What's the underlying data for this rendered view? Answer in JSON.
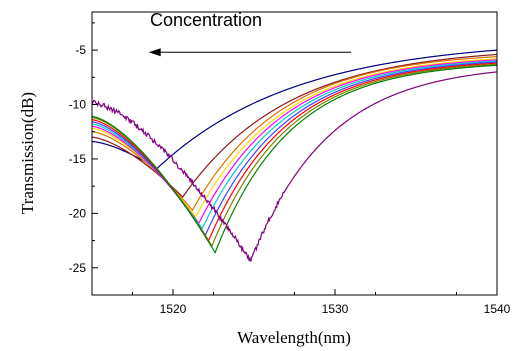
{
  "chart_data": {
    "type": "line",
    "title": "",
    "xlabel": "Wavelength(nm)",
    "ylabel": "Transmission(dB)",
    "xlim": [
      1515,
      1540
    ],
    "ylim": [
      -27.5,
      -1.5
    ],
    "xticks": [
      1520,
      1530,
      1540
    ],
    "yticks": [
      -5,
      -10,
      -15,
      -20,
      -25
    ],
    "grid": false,
    "legend": "none",
    "annotation": {
      "text": "Concentration",
      "arrow_from_x": 1531,
      "arrow_to_x": 1518.5,
      "arrow_y": -5.2
    },
    "series": [
      {
        "color": "#000080",
        "min_x": 1519.0,
        "min_y": -15.9,
        "left_x": 1515,
        "left_y": -13.4,
        "end_y": -5.0,
        "width": 8.5,
        "noisy": false
      },
      {
        "color": "#8b1a1a",
        "min_x": 1520.6,
        "min_y": -18.5,
        "left_x": 1515,
        "left_y": -13.0,
        "end_y": -5.4,
        "width": 6.5,
        "noisy": false
      },
      {
        "color": "#e07000",
        "min_x": 1521.2,
        "min_y": -19.7,
        "left_x": 1515,
        "left_y": -12.5,
        "end_y": -5.6,
        "width": 5.5,
        "noisy": false
      },
      {
        "color": "#ffdd00",
        "min_x": 1521.4,
        "min_y": -20.3,
        "left_x": 1515,
        "left_y": -12.2,
        "end_y": -5.8,
        "width": 5.3,
        "noisy": false
      },
      {
        "color": "#ff00ff",
        "min_x": 1521.6,
        "min_y": -20.9,
        "left_x": 1515,
        "left_y": -12.0,
        "end_y": -5.9,
        "width": 5.1,
        "noisy": false
      },
      {
        "color": "#00cccc",
        "min_x": 1521.8,
        "min_y": -21.4,
        "left_x": 1515,
        "left_y": -11.8,
        "end_y": -6.0,
        "width": 5.0,
        "noisy": false
      },
      {
        "color": "#4040ff",
        "min_x": 1522.0,
        "min_y": -22.0,
        "left_x": 1515,
        "left_y": -11.6,
        "end_y": -6.1,
        "width": 4.9,
        "noisy": false
      },
      {
        "color": "#ff0000",
        "min_x": 1522.2,
        "min_y": -22.5,
        "left_x": 1515,
        "left_y": -11.4,
        "end_y": -6.2,
        "width": 4.8,
        "noisy": false
      },
      {
        "color": "#808000",
        "min_x": 1522.4,
        "min_y": -23.0,
        "left_x": 1515,
        "left_y": -11.2,
        "end_y": -6.3,
        "width": 4.7,
        "noisy": false
      },
      {
        "color": "#008000",
        "min_x": 1522.6,
        "min_y": -23.6,
        "left_x": 1515,
        "left_y": -11.1,
        "end_y": -6.4,
        "width": 4.6,
        "noisy": false
      },
      {
        "color": "#800080",
        "min_x": 1524.8,
        "min_y": -24.4,
        "left_x": 1515,
        "left_y": -9.8,
        "end_y": -7.0,
        "width": 4.8,
        "noisy": true
      }
    ]
  }
}
